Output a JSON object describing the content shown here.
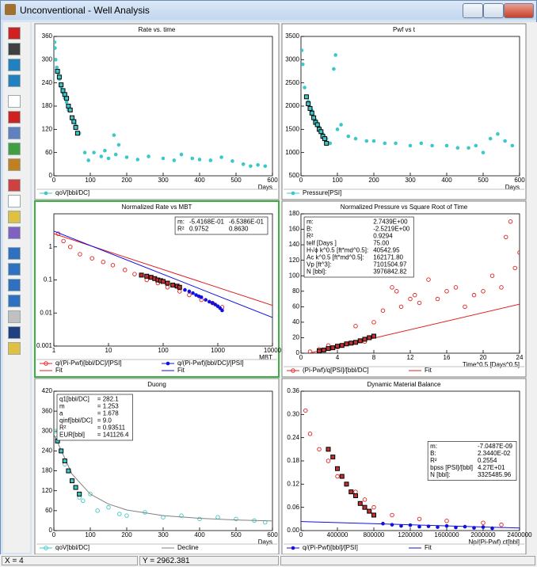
{
  "window": {
    "title": "Unconventional - Well Analysis"
  },
  "status": {
    "x": "X = 4",
    "y": "Y = 2962.381"
  },
  "chart_data": [
    {
      "type": "scatter",
      "title": "Rate vs. time",
      "xlabel": "Days",
      "xlim": [
        0,
        600
      ],
      "ylim": [
        0,
        360
      ],
      "xticks": [
        0,
        100,
        200,
        300,
        400,
        500,
        600
      ],
      "yticks": [
        0,
        60,
        120,
        180,
        240,
        300,
        360
      ],
      "series": [
        {
          "name": "qoV[bbl/DC]",
          "color": "#3cc8c8",
          "marker": "dot",
          "x": [
            2,
            3,
            5,
            8,
            12,
            15,
            20,
            25,
            30,
            35,
            40,
            50,
            60,
            70,
            85,
            95,
            110,
            130,
            140,
            150,
            165,
            170,
            178,
            200,
            230,
            260,
            300,
            330,
            350,
            380,
            400,
            430,
            460,
            490,
            520,
            540,
            560,
            580
          ],
          "values": [
            345,
            330,
            300,
            280,
            265,
            250,
            230,
            215,
            200,
            190,
            170,
            150,
            130,
            110,
            60,
            40,
            60,
            50,
            65,
            45,
            105,
            55,
            80,
            48,
            42,
            50,
            45,
            40,
            55,
            45,
            42,
            40,
            48,
            38,
            30,
            25,
            28,
            25
          ]
        },
        {
          "color": "#000000",
          "fill": "#3cc8c8",
          "marker": "square",
          "x": [
            10,
            15,
            20,
            25,
            30,
            35,
            40,
            45,
            50,
            55,
            60,
            65
          ],
          "values": [
            270,
            255,
            235,
            220,
            210,
            200,
            180,
            170,
            150,
            140,
            125,
            110
          ]
        }
      ]
    },
    {
      "type": "scatter",
      "title": "Pwf vs t",
      "xlabel": "Days",
      "xlim": [
        0,
        600
      ],
      "ylim": [
        500,
        3500
      ],
      "xticks": [
        0,
        100,
        200,
        300,
        400,
        500,
        600
      ],
      "yticks": [
        500,
        1000,
        1500,
        2000,
        2500,
        3000,
        3500
      ],
      "series": [
        {
          "name": "Pressure[PSI]",
          "color": "#3cc8c8",
          "marker": "dot",
          "x": [
            2,
            5,
            10,
            20,
            30,
            40,
            50,
            60,
            70,
            80,
            90,
            95,
            100,
            110,
            130,
            150,
            180,
            200,
            230,
            260,
            300,
            330,
            360,
            400,
            430,
            460,
            480,
            500,
            520,
            540,
            560,
            580
          ],
          "values": [
            3200,
            2900,
            2400,
            2100,
            1900,
            1700,
            1550,
            1400,
            1300,
            1200,
            2800,
            3100,
            1500,
            1600,
            1350,
            1300,
            1250,
            1250,
            1200,
            1200,
            1150,
            1200,
            1150,
            1150,
            1100,
            1100,
            1150,
            1000,
            1300,
            1400,
            1250,
            1150
          ]
        },
        {
          "color": "#000000",
          "fill": "#3cc8c8",
          "marker": "square",
          "x": [
            15,
            20,
            25,
            30,
            35,
            40,
            45,
            50,
            55,
            60,
            65,
            70
          ],
          "values": [
            2200,
            2050,
            1950,
            1850,
            1750,
            1650,
            1600,
            1500,
            1450,
            1350,
            1300,
            1200
          ]
        }
      ]
    },
    {
      "type": "scatter",
      "title": "Normalized Rate vs MBT",
      "xlabel": "MBT",
      "selected": true,
      "xscale": "log",
      "yscale": "log",
      "xlim": [
        1,
        10000
      ],
      "ylim": [
        0.001,
        10
      ],
      "xticks": [
        1,
        10,
        100,
        1000,
        10000
      ],
      "yticks": [
        0.001,
        0.01,
        0.1,
        1
      ],
      "series": [
        {
          "name": "q/(Pi-Pwf)[bbl/DC]/[PSI]",
          "color": "#e02020",
          "marker": "circle",
          "x": [
            1.2,
            1.5,
            2,
            3,
            5,
            8,
            12,
            20,
            30,
            50,
            80,
            120,
            200,
            300,
            500,
            800,
            1200
          ],
          "values": [
            2.5,
            1.5,
            1.0,
            0.6,
            0.45,
            0.35,
            0.28,
            0.2,
            0.15,
            0.1,
            0.08,
            0.06,
            0.045,
            0.035,
            0.025,
            0.02,
            0.015
          ]
        },
        {
          "name": "q/(Pi-Pwf)[bbl/DC]/[PSI]",
          "color": "#1010e0",
          "marker": "dot",
          "x": [
            250,
            300,
            350,
            400,
            450,
            500,
            600,
            700,
            800,
            900,
            1000,
            1100,
            1200
          ],
          "values": [
            0.05,
            0.045,
            0.04,
            0.035,
            0.032,
            0.03,
            0.025,
            0.022,
            0.02,
            0.018,
            0.016,
            0.014,
            0.012
          ]
        },
        {
          "name": "Fit",
          "color": "#e02020",
          "style": "line",
          "x": [
            1,
            10000
          ],
          "values": [
            2.5,
            0.017
          ]
        },
        {
          "name": "Fit",
          "color": "#1010e0",
          "style": "line",
          "x": [
            1,
            10000
          ],
          "values": [
            3,
            0.0073
          ]
        },
        {
          "color": "#000000",
          "fill": "#c03030",
          "marker": "square",
          "x": [
            40,
            50,
            60,
            70,
            80,
            90,
            100,
            120,
            150,
            180,
            200
          ],
          "values": [
            0.14,
            0.13,
            0.12,
            0.11,
            0.1,
            0.095,
            0.09,
            0.08,
            0.07,
            0.065,
            0.06
          ]
        }
      ],
      "stats": {
        "corner": "top-right",
        "colors": [
          "#000000",
          "#e02020",
          "#1010e0"
        ],
        "rows": [
          [
            "m:",
            "-5.4168E-01",
            "-6.5386E-01"
          ],
          [
            "R²",
            "0.9752",
            "0.8630"
          ]
        ]
      }
    },
    {
      "type": "scatter",
      "title": "Normalized Pressure vs Square Root of Time",
      "xlabel": "Time^0.5 [Days^0.5]",
      "xlim": [
        0,
        24
      ],
      "ylim": [
        0,
        180
      ],
      "xticks": [
        0,
        4,
        8,
        12,
        16,
        20,
        24
      ],
      "yticks": [
        0,
        20,
        40,
        60,
        80,
        100,
        120,
        140,
        160,
        180
      ],
      "series": [
        {
          "name": "(Pi-Pwf)/q[PSI]/[bbl/DC]",
          "color": "#e02020",
          "marker": "circle",
          "x": [
            1,
            2,
            3,
            4,
            5,
            6,
            7,
            8,
            9,
            10,
            10.5,
            11,
            12,
            12.5,
            13,
            14,
            15,
            16,
            17,
            18,
            19,
            20,
            21,
            22,
            22.5,
            23,
            23.5,
            24
          ],
          "values": [
            2,
            5,
            10,
            8,
            12,
            35,
            15,
            40,
            55,
            85,
            80,
            60,
            70,
            75,
            65,
            95,
            70,
            80,
            85,
            60,
            75,
            80,
            100,
            85,
            150,
            170,
            110,
            130
          ]
        },
        {
          "name": "Fit",
          "color": "#e02020",
          "style": "line",
          "x": [
            1,
            24
          ],
          "values": [
            0.22,
            63.33
          ]
        },
        {
          "color": "#000000",
          "fill": "#c03030",
          "marker": "square",
          "x": [
            2,
            2.5,
            3,
            3.5,
            4,
            4.5,
            5,
            5.5,
            6,
            6.5,
            7,
            7.5,
            8
          ],
          "values": [
            3,
            4,
            6,
            7,
            9,
            10,
            12,
            13,
            14,
            16,
            18,
            20,
            22
          ]
        }
      ],
      "stats": {
        "corner": "top-left",
        "colors": [
          "#000000",
          "#e02020"
        ],
        "rows": [
          [
            "m:",
            "2.7439E+00"
          ],
          [
            "B:",
            "-2.5219E+00"
          ],
          [
            "R²",
            "0.9294"
          ],
          [
            "telf [Days ]",
            "75.00"
          ],
          [
            "H√ϕ k^0.5 [ft*md^0.5]:",
            "40542.95"
          ],
          [
            "Ac k^0.5 [ft*md^0.5]:",
            "162171.80"
          ],
          [
            "Vp [ft^3]:",
            "7101504.97"
          ],
          [
            "N [bbl]:",
            "3976842.82"
          ]
        ]
      }
    },
    {
      "type": "scatter",
      "title": "Duong",
      "xlabel": "Days",
      "xlim": [
        0,
        600
      ],
      "ylim": [
        0,
        420
      ],
      "xticks": [
        0,
        100,
        200,
        300,
        400,
        500,
        600
      ],
      "yticks": [
        0,
        60,
        120,
        180,
        240,
        300,
        360,
        420
      ],
      "series": [
        {
          "name": "qoV[bbl/DC]",
          "color": "#3cc8c8",
          "marker": "circle",
          "x": [
            5,
            10,
            20,
            30,
            40,
            50,
            60,
            70,
            80,
            100,
            120,
            150,
            180,
            200,
            250,
            300,
            350,
            400,
            450,
            500,
            550,
            580
          ],
          "values": [
            300,
            280,
            240,
            200,
            180,
            150,
            130,
            100,
            90,
            110,
            60,
            70,
            50,
            45,
            55,
            40,
            45,
            35,
            40,
            35,
            30,
            25
          ]
        },
        {
          "name": "Decline",
          "color": "#808080",
          "style": "line",
          "x": [
            0,
            50,
            100,
            150,
            200,
            300,
            400,
            500,
            600
          ],
          "values": [
            290,
            170,
            110,
            80,
            62,
            45,
            37,
            32,
            29
          ]
        },
        {
          "color": "#000000",
          "fill": "#3cc8c8",
          "marker": "square",
          "x": [
            10,
            20,
            30,
            40,
            50,
            60,
            70
          ],
          "values": [
            270,
            240,
            210,
            180,
            150,
            130,
            110
          ]
        }
      ],
      "stats": {
        "corner": "top-left",
        "colors": [
          "#000000",
          "#000000"
        ],
        "rows": [
          [
            "q1[bbl/DC]",
            "= 282.1"
          ],
          [
            "m",
            "= 1.253"
          ],
          [
            "a",
            "= 1.678"
          ],
          [
            "qinf[bbl/DC]",
            "= 9.0"
          ],
          [
            "R²",
            "= 0.93511"
          ],
          [
            "EUR[bbl]",
            "= 141126.4"
          ]
        ]
      }
    },
    {
      "type": "scatter",
      "title": "Dynamic Material Balance",
      "xlabel": "Np/(Pi-Pwf) ct[bbl]",
      "xlim": [
        0,
        2400000
      ],
      "ylim": [
        0,
        0.36
      ],
      "xticks": [
        0,
        400000,
        800000,
        1200000,
        1600000,
        2000000,
        2400000
      ],
      "yticks": [
        {
          "value": 0,
          "label": "0.00"
        },
        0.06,
        0.12,
        0.18,
        0.24,
        {
          "value": 0.3,
          "label": "0.30"
        },
        0.36
      ],
      "series": [
        {
          "color": "#e02020",
          "marker": "circle",
          "x": [
            50000,
            100000,
            200000,
            300000,
            400000,
            500000,
            600000,
            700000,
            800000,
            1000000,
            1300000,
            1600000,
            2000000,
            2200000
          ],
          "values": [
            0.31,
            0.25,
            0.21,
            0.18,
            0.14,
            0.12,
            0.1,
            0.08,
            0.06,
            0.04,
            0.03,
            0.025,
            0.02,
            0.015
          ]
        },
        {
          "color": "#000000",
          "fill": "#c03030",
          "marker": "square",
          "x": [
            300000,
            350000,
            400000,
            450000,
            500000,
            550000,
            600000,
            650000,
            700000,
            750000,
            800000
          ],
          "values": [
            0.21,
            0.19,
            0.16,
            0.14,
            0.12,
            0.1,
            0.09,
            0.07,
            0.06,
            0.05,
            0.04
          ]
        },
        {
          "name": "q/(Pi-Pwf)[bbl]/[PSI]",
          "color": "#1010e0",
          "marker": "dot",
          "x": [
            900000,
            1000000,
            1100000,
            1200000,
            1300000,
            1400000,
            1500000,
            1600000,
            1700000,
            1800000,
            1900000,
            2000000,
            2100000
          ],
          "values": [
            0.018,
            0.015,
            0.012,
            0.014,
            0.01,
            0.011,
            0.009,
            0.012,
            0.008,
            0.01,
            0.007,
            0.009,
            0.006
          ]
        },
        {
          "name": "Fit",
          "color": "#1010e0",
          "style": "line",
          "x": [
            0,
            2400000
          ],
          "values": [
            0.02344,
            0.00652
          ]
        }
      ],
      "stats": {
        "corner": "right",
        "colors": [
          "#000000",
          "#1010e0"
        ],
        "rows": [
          [
            "m:",
            "-7.0487E-09"
          ],
          [
            "B:",
            "2.3440E-02"
          ],
          [
            "R²",
            "0.2554"
          ],
          [
            "bpss [PSI]/[bbl]",
            "4.27E+01"
          ],
          [
            "N [bbl]:",
            "3325485.96"
          ]
        ]
      }
    }
  ]
}
